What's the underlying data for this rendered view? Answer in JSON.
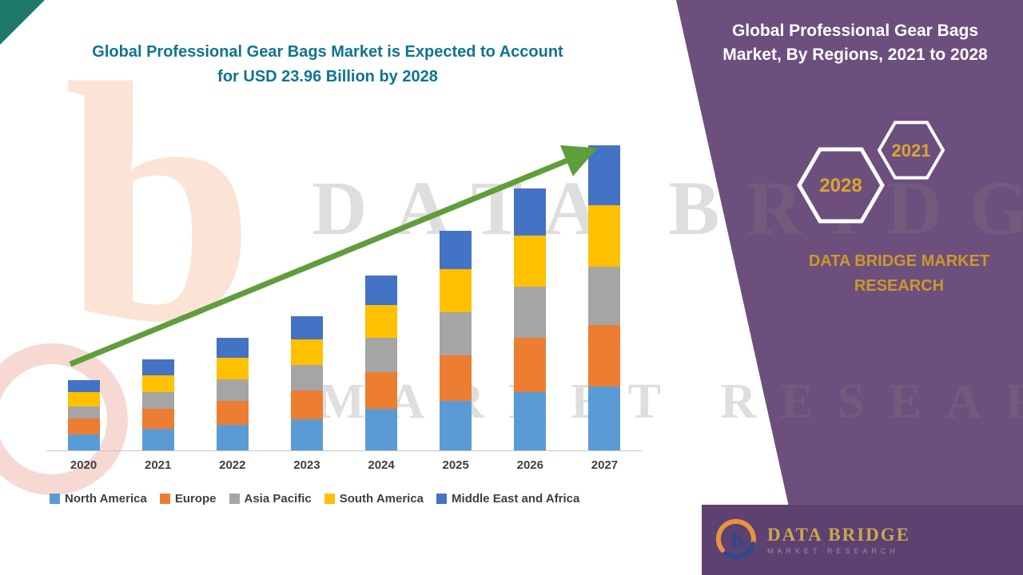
{
  "chart": {
    "title_line1": "Global Professional Gear Bags Market is Expected to Account",
    "title_line2": "for USD 23.96 Billion by 2028",
    "title_color": "#0f7490"
  },
  "chart_data": {
    "type": "bar",
    "stacked": true,
    "unit": "USD Billion",
    "title": "Global Professional Gear Bags Market is Expected to Account for USD 23.96 Billion by 2028",
    "xlabel": "",
    "ylabel": "",
    "ylim": [
      0,
      24
    ],
    "grid": false,
    "legend_position": "bottom",
    "categories": [
      "2020",
      "2021",
      "2022",
      "2023",
      "2024",
      "2025",
      "2026",
      "2027"
    ],
    "series": [
      {
        "name": "North America",
        "color": "#5b9bd5",
        "values": [
          1.1,
          1.5,
          1.8,
          2.2,
          2.9,
          3.5,
          4.1,
          4.5
        ]
      },
      {
        "name": "Europe",
        "color": "#ed7d31",
        "values": [
          1.1,
          1.4,
          1.7,
          2.0,
          2.6,
          3.2,
          3.8,
          4.3
        ]
      },
      {
        "name": "Asia Pacific",
        "color": "#a5a5a5",
        "values": [
          0.85,
          1.2,
          1.5,
          1.8,
          2.4,
          3.0,
          3.6,
          4.1
        ]
      },
      {
        "name": "South America",
        "color": "#ffc000",
        "values": [
          1.0,
          1.2,
          1.5,
          1.8,
          2.3,
          3.0,
          3.6,
          4.3
        ]
      },
      {
        "name": "Middle East and Africa",
        "color": "#4472c4",
        "values": [
          0.85,
          1.1,
          1.4,
          1.6,
          2.1,
          2.7,
          3.3,
          4.2
        ]
      }
    ],
    "annotations": [
      "green upward trend arrow from 2020 to 2027"
    ]
  },
  "watermark": {
    "letter": "b",
    "line1": "DATA BRIDGE",
    "line2": "MARKET RESEARCH"
  },
  "side_panel": {
    "bg": "#6d4f7d",
    "title": "Global Professional Gear Bags Market, By Regions, 2021 to 2028",
    "hexagons": [
      {
        "year": "2028"
      },
      {
        "year": "2021"
      }
    ],
    "brand": "DATA BRIDGE MARKET RESEARCH",
    "accent": "#d9a62e"
  },
  "footer_logo": {
    "name": "DATA BRIDGE",
    "sub": "MARKET RESEARCH"
  }
}
